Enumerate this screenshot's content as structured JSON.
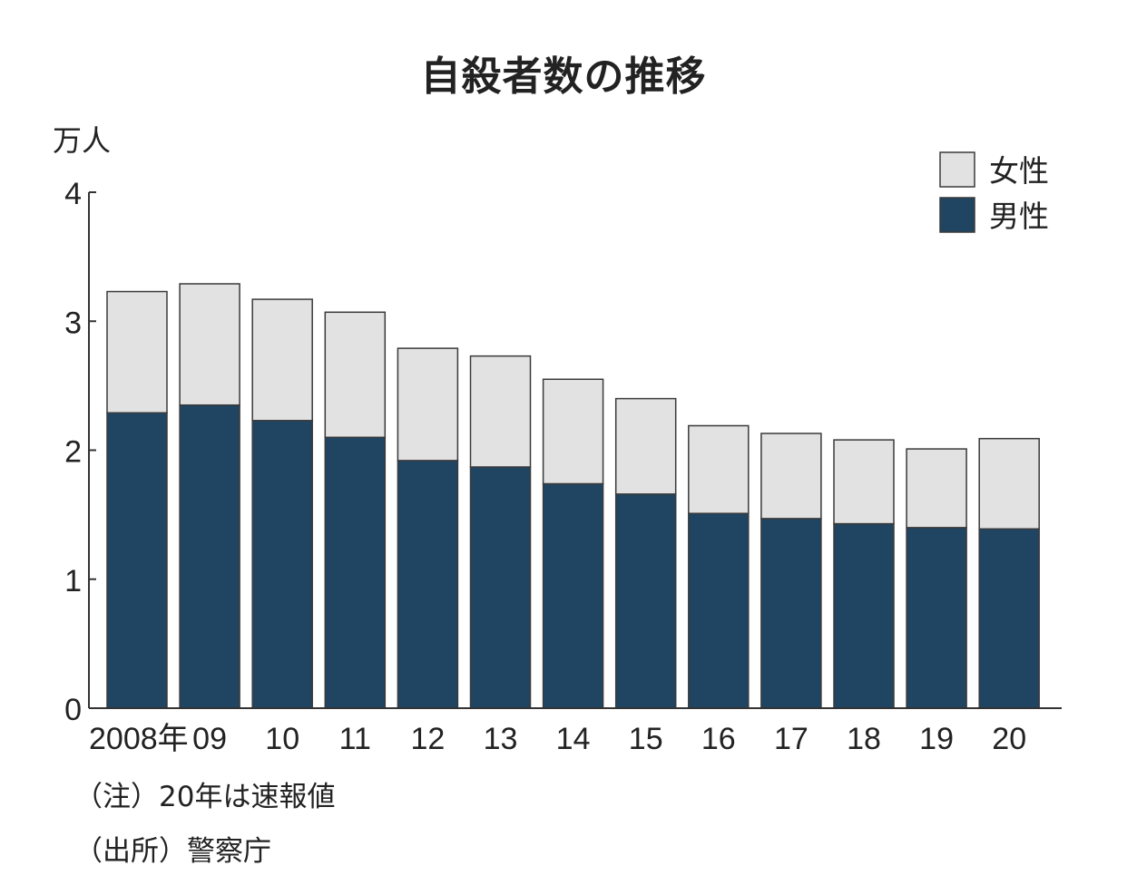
{
  "chart_data": {
    "type": "bar",
    "stacked": true,
    "title": "自殺者数の推移",
    "ylabel": "万人",
    "categories": [
      "2008年",
      "09",
      "10",
      "11",
      "12",
      "13",
      "14",
      "15",
      "16",
      "17",
      "18",
      "19",
      "20"
    ],
    "series": [
      {
        "name": "男性",
        "color": "#1f4563",
        "values": [
          2.29,
          2.35,
          2.23,
          2.1,
          1.92,
          1.87,
          1.74,
          1.66,
          1.51,
          1.47,
          1.43,
          1.4,
          1.39
        ]
      },
      {
        "name": "女性",
        "color": "#e2e2e2",
        "values": [
          0.94,
          0.94,
          0.94,
          0.97,
          0.87,
          0.86,
          0.81,
          0.74,
          0.68,
          0.66,
          0.65,
          0.61,
          0.7
        ]
      }
    ],
    "legend": [
      {
        "name": "女性",
        "color": "#e2e2e2"
      },
      {
        "name": "男性",
        "color": "#1f4563"
      }
    ],
    "yticks": [
      "0",
      "1",
      "2",
      "3",
      "4"
    ],
    "ylim": [
      0,
      4
    ],
    "legend_position": "top-right",
    "grid": false
  },
  "notes": {
    "note": "（注）20年は速報値",
    "source": "（出所）警察庁"
  }
}
